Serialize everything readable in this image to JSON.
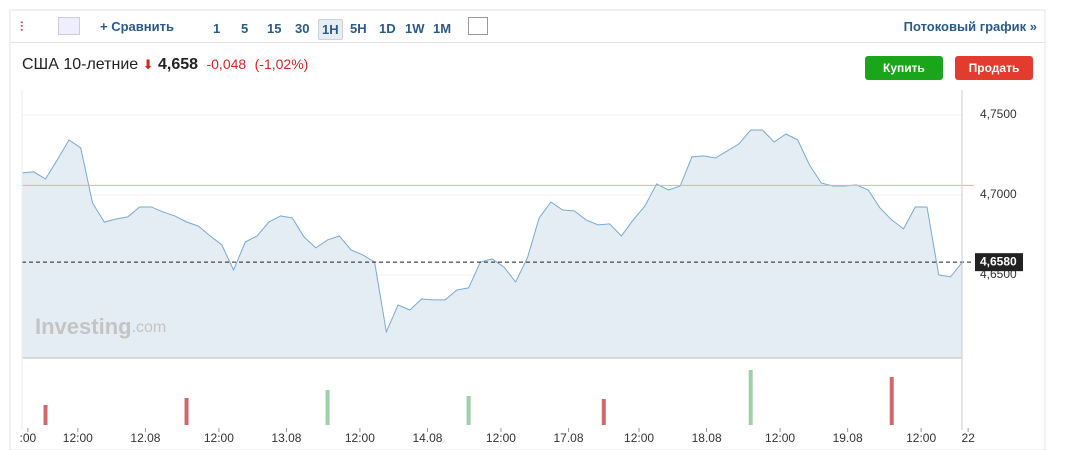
{
  "toolbar": {
    "compare": "Сравнить",
    "intervals": [
      "1",
      "5",
      "15",
      "30",
      "1H",
      "5H",
      "1D",
      "1W",
      "1M"
    ],
    "selected": "1H",
    "stream": "Потоковый график »"
  },
  "header": {
    "name": "США 10-летние",
    "price": "4,658",
    "change": "-0,048",
    "change_pct": "(-1,02%)"
  },
  "buttons": {
    "buy": "Купить",
    "sell": "Продать"
  },
  "watermark": {
    "brand": "Investing",
    "suffix": ".com"
  },
  "chart_data": {
    "type": "area",
    "color": "#79a9d1",
    "fill": "#e4edf4",
    "x": [
      0,
      2,
      4,
      6,
      8,
      10,
      12,
      14,
      16,
      18,
      20,
      22,
      24,
      26,
      28,
      30,
      32,
      34,
      36,
      38,
      40,
      42,
      44,
      46,
      48,
      50,
      52,
      54,
      56,
      58,
      60,
      62,
      64,
      66,
      68,
      70,
      72,
      74,
      76,
      78,
      80,
      82,
      84,
      86,
      88,
      90,
      92,
      94,
      96,
      98,
      100,
      102,
      104,
      106,
      108,
      110,
      112,
      114,
      116,
      118,
      120,
      122,
      124,
      126,
      128,
      130,
      132,
      134,
      136,
      138,
      140,
      142,
      144,
      146,
      148,
      150,
      152,
      154,
      156,
      158,
      160
    ],
    "values": [
      4.7138,
      4.7144,
      4.71,
      4.7219,
      4.7344,
      4.7294,
      4.695,
      4.6831,
      4.685,
      4.6863,
      4.6925,
      4.6925,
      4.6894,
      4.6869,
      4.6831,
      4.6806,
      4.6744,
      4.6688,
      4.6531,
      4.6706,
      4.6744,
      4.6831,
      4.6869,
      4.6856,
      4.6738,
      4.6669,
      4.6719,
      4.6744,
      4.6656,
      4.6625,
      4.6581,
      4.6144,
      4.6313,
      4.6281,
      4.635,
      4.6344,
      4.6344,
      4.6406,
      4.6419,
      4.6581,
      4.66,
      4.655,
      4.6456,
      4.6606,
      4.6856,
      4.6956,
      4.6906,
      4.69,
      4.6844,
      4.6813,
      4.6819,
      4.6744,
      4.6844,
      4.6931,
      4.7069,
      4.7031,
      4.7056,
      4.7238,
      4.7244,
      4.7231,
      4.7275,
      4.7319,
      4.7406,
      4.7406,
      4.7331,
      4.7381,
      4.7344,
      4.7188,
      4.7075,
      4.7056,
      4.7056,
      4.7063,
      4.7031,
      4.6919,
      4.6844,
      4.6788,
      4.6925,
      4.6925,
      4.65,
      4.6488,
      4.658
    ],
    "xlim": [
      0,
      162
    ],
    "ylim": [
      4.5981,
      4.7656
    ],
    "yticks": [
      {
        "value": 4.75,
        "label": "4,7500"
      },
      {
        "value": 4.7,
        "label": "4,7000"
      },
      {
        "value": 4.65,
        "label": "4,6500"
      }
    ],
    "xticks": [
      {
        "value": 1,
        "label": ":00"
      },
      {
        "value": 9.5,
        "label": "12:00"
      },
      {
        "value": 21,
        "label": "12.08"
      },
      {
        "value": 33.5,
        "label": "12:00"
      },
      {
        "value": 45,
        "label": "13.08"
      },
      {
        "value": 57.5,
        "label": "12:00"
      },
      {
        "value": 69,
        "label": "14.08"
      },
      {
        "value": 81.5,
        "label": "12:00"
      },
      {
        "value": 93,
        "label": "17.08"
      },
      {
        "value": 105,
        "label": "12:00"
      },
      {
        "value": 116.5,
        "label": "18.08"
      },
      {
        "value": 129,
        "label": "12:00"
      },
      {
        "value": 140.5,
        "label": "19.08"
      },
      {
        "value": 153,
        "label": "12:00"
      },
      {
        "value": 161,
        "label": "22"
      }
    ],
    "reference_line": 4.706,
    "reference_color": "#f0a8a8",
    "last_price": 4.658,
    "last_price_label": "4,6580",
    "volume": {
      "x": [
        4,
        28,
        52,
        76,
        99,
        124,
        148
      ],
      "values": [
        20,
        27,
        35,
        29,
        26,
        55,
        48
      ],
      "directions": [
        "down",
        "down",
        "up",
        "up",
        "down",
        "up",
        "down"
      ],
      "up_color": "#9fd1a8",
      "down_color": "#d06a6a",
      "vlim": [
        0,
        60
      ]
    }
  }
}
